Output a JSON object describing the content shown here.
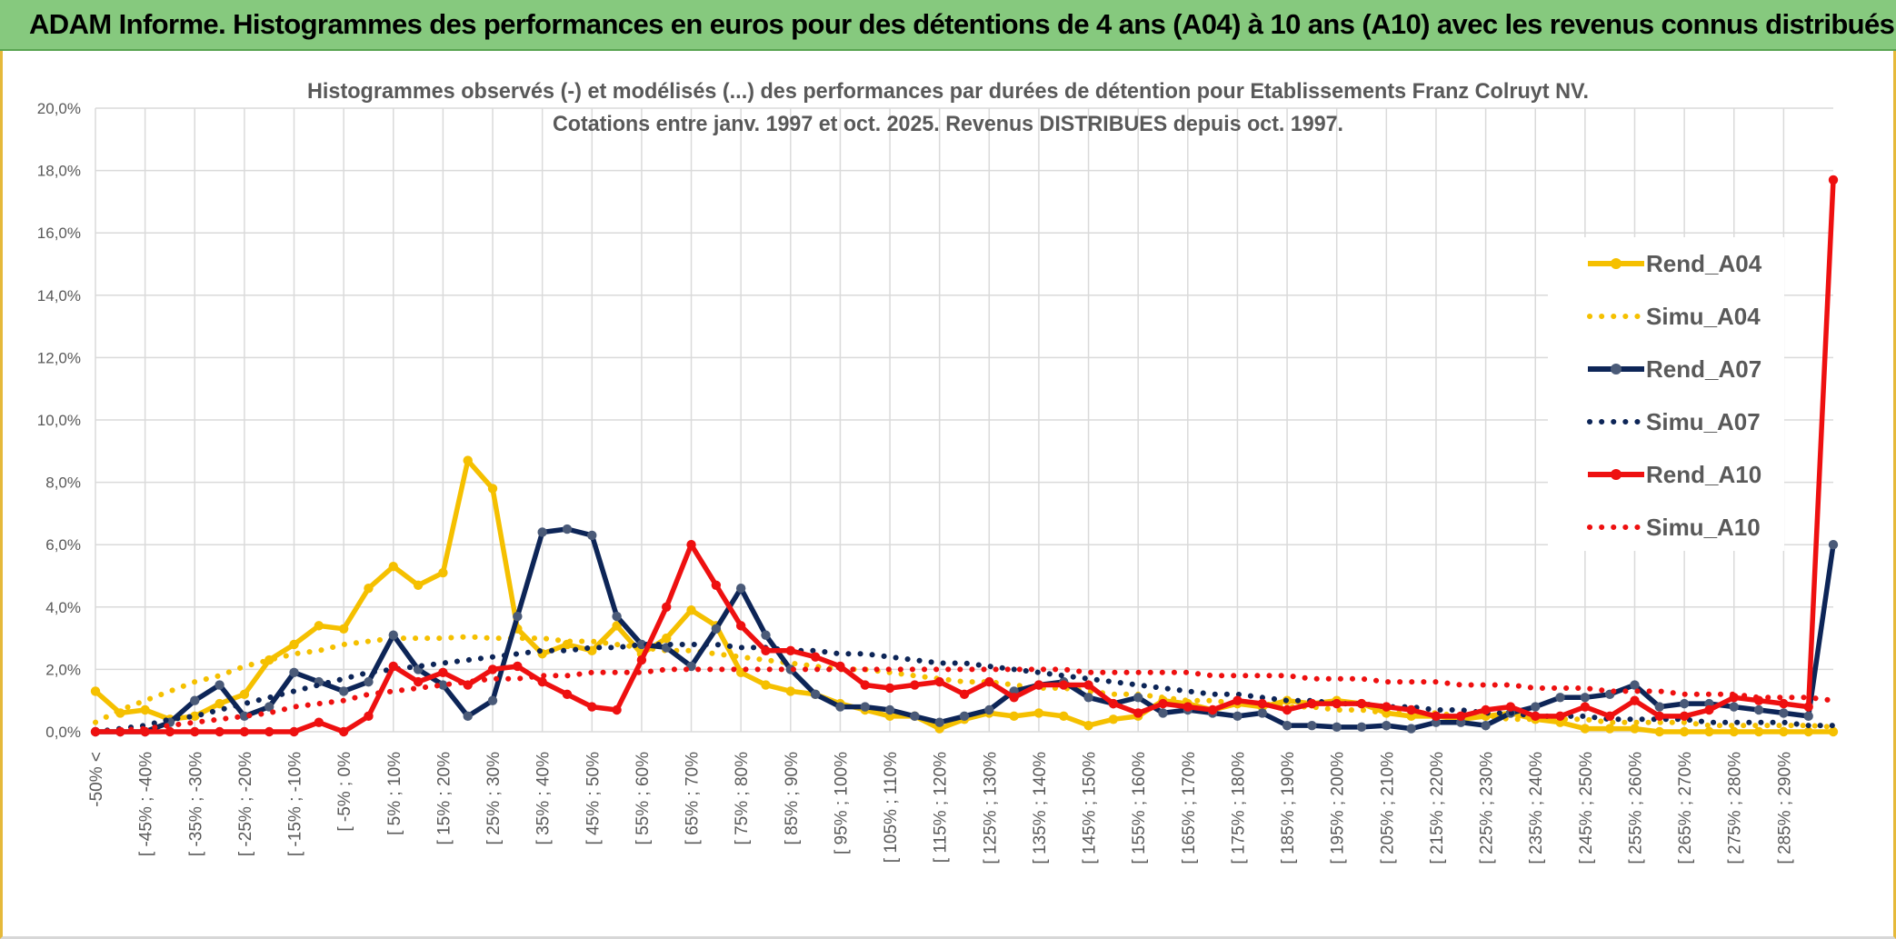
{
  "banner": {
    "title": "ADAM Informe. Histogrammes des performances en euros pour des détentions de 4 ans (A04) à 10 ans (A10) avec les revenus connus distribués"
  },
  "colors": {
    "banner": "#86c97e",
    "a04": "#f5c000",
    "a07": "#0d2557",
    "a10": "#ee1010",
    "grid": "#dadada",
    "text": "#595959"
  },
  "chart_data": {
    "type": "line",
    "title": [
      "Histogrammes observés (-) et modélisés (...) des performances par durées de détention pour Etablissements Franz Colruyt NV.",
      "Cotations entre janv. 1997 et oct. 2025. Revenus DISTRIBUES depuis oct. 1997."
    ],
    "y_ticks": [
      "0,0%",
      "2,0%",
      "4,0%",
      "6,0%",
      "8,0%",
      "10,0%",
      "12,0%",
      "14,0%",
      "16,0%",
      "18,0%",
      "20,0%"
    ],
    "ylim": [
      0,
      20
    ],
    "n_points": 71,
    "x_tick_labels": [
      "-50% <",
      "[ -45% ; -40%",
      "[ -35% ; -30%",
      "[ -25% ; -20%",
      "[ -15% ; -10%",
      "[ -5% ; 0%",
      "[ 5% ; 10%",
      "[ 15% ; 20%",
      "[ 25% ; 30%",
      "[ 35% ; 40%",
      "[ 45% ; 50%",
      "[ 55% ; 60%",
      "[ 65% ; 70%",
      "[ 75% ; 80%",
      "[ 85% ; 90%",
      "[ 95% ; 100%",
      "[ 105% ; 110%",
      "[ 115% ; 120%",
      "[ 125% ; 130%",
      "[ 135% ; 140%",
      "[ 145% ; 150%",
      "[ 155% ; 160%",
      "[ 165% ; 170%",
      "[ 175% ; 180%",
      "[ 185% ; 190%",
      "[ 195% ; 200%",
      "[ 205% ; 210%",
      "[ 215% ; 220%",
      "[ 225% ; 230%",
      "[ 235% ; 240%",
      "[ 245% ; 250%",
      "[ 255% ; 260%",
      "[ 265% ; 270%",
      "[ 275% ; 280%",
      "[ 285% ; 290%"
    ],
    "x_tick_index": [
      0,
      2,
      4,
      6,
      8,
      10,
      12,
      14,
      16,
      18,
      20,
      22,
      24,
      26,
      28,
      30,
      32,
      34,
      36,
      38,
      40,
      42,
      44,
      46,
      48,
      50,
      52,
      54,
      56,
      58,
      60,
      62,
      64,
      66,
      68
    ],
    "series": [
      {
        "name": "Rend_A04",
        "style": "solid",
        "color": "#f5c000",
        "values": [
          1.3,
          0.6,
          0.7,
          0.4,
          0.5,
          0.9,
          1.2,
          2.3,
          2.8,
          3.4,
          3.3,
          4.6,
          5.3,
          4.7,
          5.1,
          8.7,
          7.8,
          3.3,
          2.5,
          2.8,
          2.6,
          3.4,
          2.5,
          3.0,
          3.9,
          3.4,
          1.9,
          1.5,
          1.3,
          1.2,
          0.9,
          0.7,
          0.5,
          0.5,
          0.1,
          0.4,
          0.6,
          0.5,
          0.6,
          0.5,
          0.2,
          0.4,
          0.5,
          1.0,
          0.9,
          0.7,
          0.9,
          0.8,
          1.0,
          0.9,
          1.0,
          0.9,
          0.6,
          0.5,
          0.5,
          0.4,
          0.5,
          0.6,
          0.4,
          0.3,
          0.1,
          0.1,
          0.1,
          0.0,
          0.0,
          0.0,
          0.0,
          0.0,
          0.0,
          0.0,
          0.0
        ]
      },
      {
        "name": "Simu_A04",
        "style": "dotted",
        "color": "#f5c000",
        "values": [
          0.3,
          0.7,
          1.0,
          1.3,
          1.6,
          1.8,
          2.1,
          2.3,
          2.5,
          2.6,
          2.8,
          2.9,
          3.0,
          3.0,
          3.0,
          3.05,
          3.0,
          3.0,
          3.0,
          2.9,
          2.9,
          2.8,
          2.7,
          2.6,
          2.6,
          2.5,
          2.4,
          2.3,
          2.2,
          2.1,
          2.0,
          2.0,
          1.9,
          1.8,
          1.7,
          1.6,
          1.6,
          1.5,
          1.4,
          1.4,
          1.3,
          1.2,
          1.2,
          1.1,
          1.0,
          1.0,
          0.9,
          0.9,
          0.8,
          0.8,
          0.7,
          0.7,
          0.6,
          0.6,
          0.6,
          0.5,
          0.5,
          0.4,
          0.4,
          0.4,
          0.4,
          0.3,
          0.3,
          0.3,
          0.3,
          0.2,
          0.2,
          0.2,
          0.2,
          0.2,
          0.15
        ]
      },
      {
        "name": "Rend_A07",
        "style": "solid",
        "color": "#0d2557",
        "values": [
          0.0,
          0.0,
          0.0,
          0.3,
          1.0,
          1.5,
          0.5,
          0.8,
          1.9,
          1.6,
          1.3,
          1.6,
          3.1,
          2.0,
          1.5,
          0.5,
          1.0,
          3.7,
          6.4,
          6.5,
          6.3,
          3.7,
          2.8,
          2.7,
          2.1,
          3.3,
          4.6,
          3.1,
          2.0,
          1.2,
          0.8,
          0.8,
          0.7,
          0.5,
          0.3,
          0.5,
          0.7,
          1.3,
          1.5,
          1.6,
          1.1,
          0.9,
          1.1,
          0.6,
          0.7,
          0.6,
          0.5,
          0.6,
          0.2,
          0.2,
          0.15,
          0.15,
          0.2,
          0.1,
          0.3,
          0.3,
          0.2,
          0.6,
          0.8,
          1.1,
          1.1,
          1.2,
          1.5,
          0.8,
          0.9,
          0.9,
          0.8,
          0.7,
          0.6,
          0.5,
          6.0
        ]
      },
      {
        "name": "Simu_A07",
        "style": "dotted",
        "color": "#0d2557",
        "values": [
          0.0,
          0.1,
          0.2,
          0.4,
          0.5,
          0.7,
          0.9,
          1.1,
          1.3,
          1.5,
          1.7,
          1.9,
          2.0,
          2.1,
          2.2,
          2.3,
          2.4,
          2.5,
          2.6,
          2.6,
          2.7,
          2.7,
          2.8,
          2.8,
          2.8,
          2.8,
          2.7,
          2.7,
          2.6,
          2.6,
          2.5,
          2.5,
          2.4,
          2.3,
          2.2,
          2.2,
          2.1,
          2.0,
          1.9,
          1.8,
          1.7,
          1.6,
          1.5,
          1.4,
          1.3,
          1.2,
          1.2,
          1.1,
          1.0,
          1.0,
          0.9,
          0.9,
          0.8,
          0.8,
          0.7,
          0.7,
          0.6,
          0.6,
          0.5,
          0.5,
          0.5,
          0.4,
          0.4,
          0.4,
          0.4,
          0.3,
          0.3,
          0.3,
          0.3,
          0.2,
          0.2
        ]
      },
      {
        "name": "Rend_A10",
        "style": "solid",
        "color": "#ee1010",
        "values": [
          0.0,
          0.0,
          0.0,
          0.0,
          0.0,
          0.0,
          0.0,
          0.0,
          0.0,
          0.3,
          0.0,
          0.5,
          2.1,
          1.6,
          1.9,
          1.5,
          2.0,
          2.1,
          1.6,
          1.2,
          0.8,
          0.7,
          2.3,
          4.0,
          6.0,
          4.7,
          3.4,
          2.6,
          2.6,
          2.4,
          2.1,
          1.5,
          1.4,
          1.5,
          1.6,
          1.2,
          1.6,
          1.1,
          1.5,
          1.5,
          1.5,
          0.9,
          0.6,
          0.9,
          0.8,
          0.7,
          1.0,
          0.9,
          0.7,
          0.9,
          0.9,
          0.9,
          0.8,
          0.7,
          0.5,
          0.5,
          0.7,
          0.8,
          0.5,
          0.5,
          0.8,
          0.5,
          1.0,
          0.5,
          0.5,
          0.7,
          1.1,
          1.0,
          0.9,
          0.8,
          17.7
        ]
      },
      {
        "name": "Simu_A10",
        "style": "dotted",
        "color": "#ee1010",
        "values": [
          0.0,
          0.05,
          0.1,
          0.2,
          0.3,
          0.4,
          0.5,
          0.6,
          0.8,
          0.9,
          1.0,
          1.2,
          1.3,
          1.4,
          1.5,
          1.6,
          1.7,
          1.7,
          1.8,
          1.8,
          1.9,
          1.9,
          1.9,
          2.0,
          2.0,
          2.0,
          2.0,
          2.0,
          2.0,
          2.0,
          2.0,
          2.0,
          2.0,
          2.0,
          2.0,
          2.0,
          2.0,
          2.0,
          2.0,
          2.0,
          1.9,
          1.9,
          1.9,
          1.9,
          1.9,
          1.8,
          1.8,
          1.8,
          1.8,
          1.7,
          1.7,
          1.7,
          1.6,
          1.6,
          1.6,
          1.5,
          1.5,
          1.5,
          1.4,
          1.4,
          1.4,
          1.3,
          1.3,
          1.3,
          1.2,
          1.2,
          1.2,
          1.1,
          1.1,
          1.1,
          1.0
        ]
      }
    ],
    "legend": [
      "Rend_A04",
      "Simu_A04",
      "Rend_A07",
      "Simu_A07",
      "Rend_A10",
      "Simu_A10"
    ],
    "legend_position": "top-right",
    "grid": true
  }
}
